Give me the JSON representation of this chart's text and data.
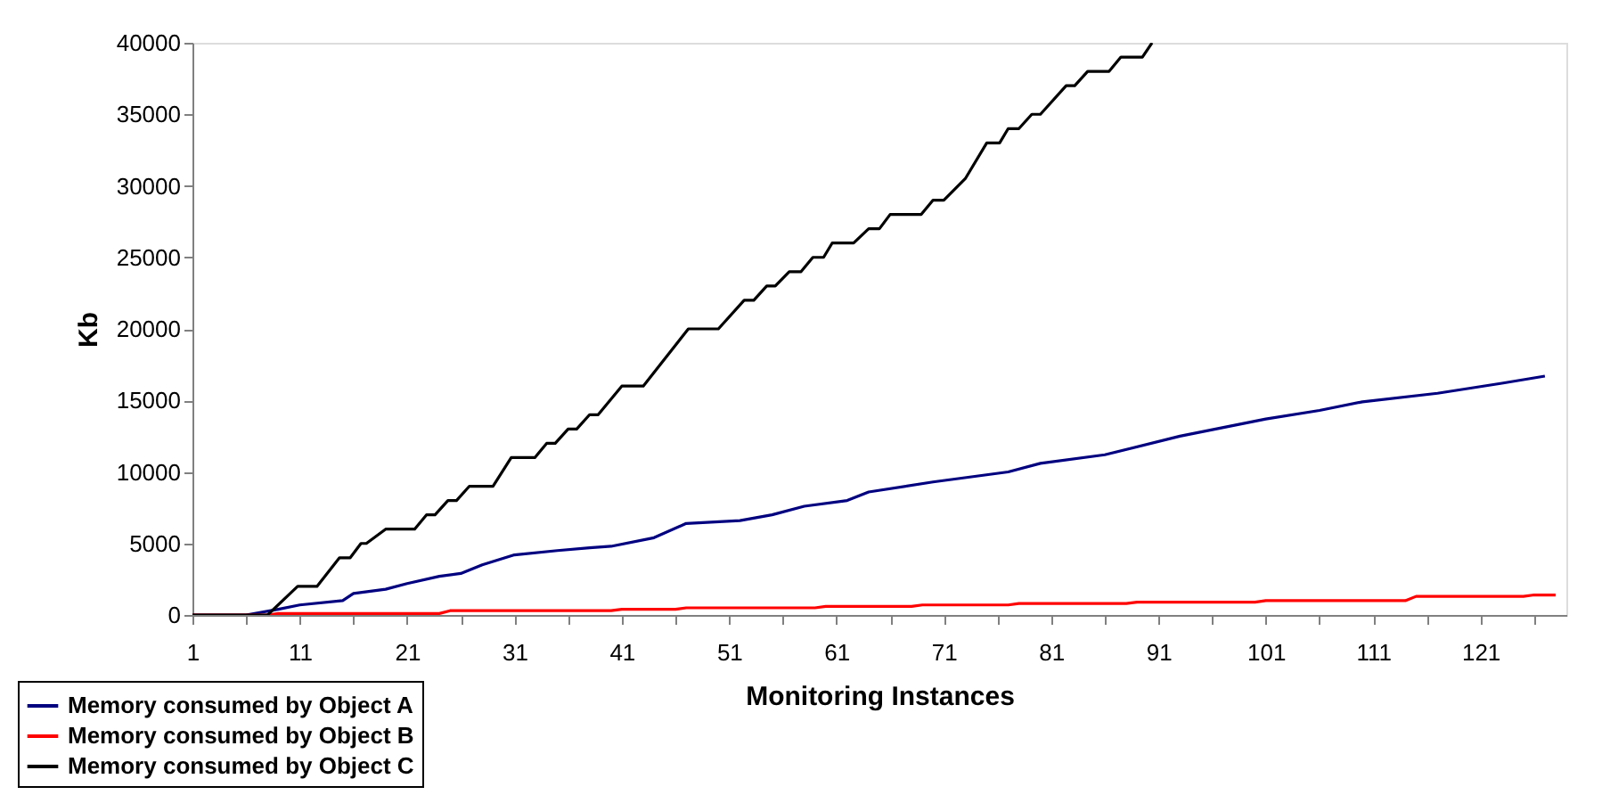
{
  "chart_data": {
    "type": "line",
    "xlabel": "Monitoring Instances",
    "ylabel": "Kb",
    "xlim": [
      1,
      129
    ],
    "ylim": [
      0,
      40000
    ],
    "xticks": [
      1,
      {
        "value": 6,
        "label": null
      },
      11,
      {
        "value": 16,
        "label": null
      },
      21,
      {
        "value": 26,
        "label": null
      },
      31,
      {
        "value": 36,
        "label": null
      },
      41,
      {
        "value": 46,
        "label": null
      },
      51,
      {
        "value": 56,
        "label": null
      },
      61,
      {
        "value": 66,
        "label": null
      },
      71,
      {
        "value": 76,
        "label": null
      },
      81,
      {
        "value": 86,
        "label": null
      },
      91,
      {
        "value": 96,
        "label": null
      },
      101,
      {
        "value": 106,
        "label": null
      },
      111,
      {
        "value": 116,
        "label": null
      },
      121,
      {
        "value": 126,
        "label": null
      }
    ],
    "yticks": [
      0,
      5000,
      10000,
      15000,
      20000,
      25000,
      30000,
      35000,
      40000
    ],
    "grid": false,
    "legend": "bottom left",
    "marker": "none",
    "line_style": "solid",
    "series": [
      {
        "name": "Memory consumed by Object A",
        "color": "#000080",
        "x": [
          1,
          6,
          9,
          11,
          15,
          16,
          19,
          21,
          24,
          26,
          28,
          31,
          35,
          38,
          40,
          44,
          47,
          52,
          55,
          58,
          62,
          64,
          70,
          77,
          80,
          86,
          93,
          101,
          106,
          110,
          117,
          123,
          127
        ],
        "values": [
          0,
          0,
          400,
          700,
          1000,
          1500,
          1800,
          2200,
          2700,
          2900,
          3500,
          4200,
          4500,
          4700,
          4800,
          5400,
          6400,
          6600,
          7000,
          7600,
          8000,
          8600,
          9300,
          10000,
          10600,
          11200,
          12500,
          13700,
          14300,
          14900,
          15500,
          16200,
          16700
        ]
      },
      {
        "name": "Memory consumed by Object B",
        "color": "#ff0000",
        "x": [
          1,
          8,
          9,
          24,
          25,
          40,
          41,
          46,
          47,
          59,
          60,
          68,
          69,
          77,
          78,
          88,
          89,
          100,
          101,
          114,
          115,
          125,
          126,
          128
        ],
        "values": [
          0,
          0,
          100,
          100,
          300,
          300,
          400,
          400,
          500,
          500,
          600,
          600,
          700,
          700,
          800,
          800,
          900,
          900,
          1000,
          1000,
          1300,
          1300,
          1400,
          1400
        ]
      },
      {
        "name": "Memory consumed by Object C",
        "color": "#000000",
        "x": [
          1,
          8,
          10.8,
          12.6,
          14.7,
          15.7,
          16.7,
          17.2,
          19,
          21.7,
          22.8,
          23.6,
          24.8,
          25.6,
          26.8,
          29,
          30.7,
          32.9,
          34,
          34.8,
          36,
          36.8,
          38,
          38.8,
          41,
          43,
          47.2,
          50,
          52.4,
          53.3,
          54.5,
          55.3,
          56.6,
          57.7,
          58.8,
          59.8,
          60.6,
          62.6,
          64,
          65,
          66,
          68.9,
          70,
          71,
          73,
          75,
          76.2,
          77,
          78,
          79.2,
          80,
          82.4,
          83.2,
          84.4,
          86.4,
          87.5,
          89.5,
          90.4
        ],
        "values": [
          0,
          0,
          2000,
          2000,
          4000,
          4000,
          5000,
          5000,
          6000,
          6000,
          7000,
          7000,
          8000,
          8000,
          9000,
          9000,
          11000,
          11000,
          12000,
          12000,
          13000,
          13000,
          14000,
          14000,
          16000,
          16000,
          20000,
          20000,
          22000,
          22000,
          23000,
          23000,
          24000,
          24000,
          25000,
          25000,
          26000,
          26000,
          27000,
          27000,
          28000,
          28000,
          29000,
          29000,
          30500,
          33000,
          33000,
          34000,
          34000,
          35000,
          35000,
          37000,
          37000,
          38000,
          38000,
          39000,
          39000,
          40000
        ]
      }
    ]
  }
}
